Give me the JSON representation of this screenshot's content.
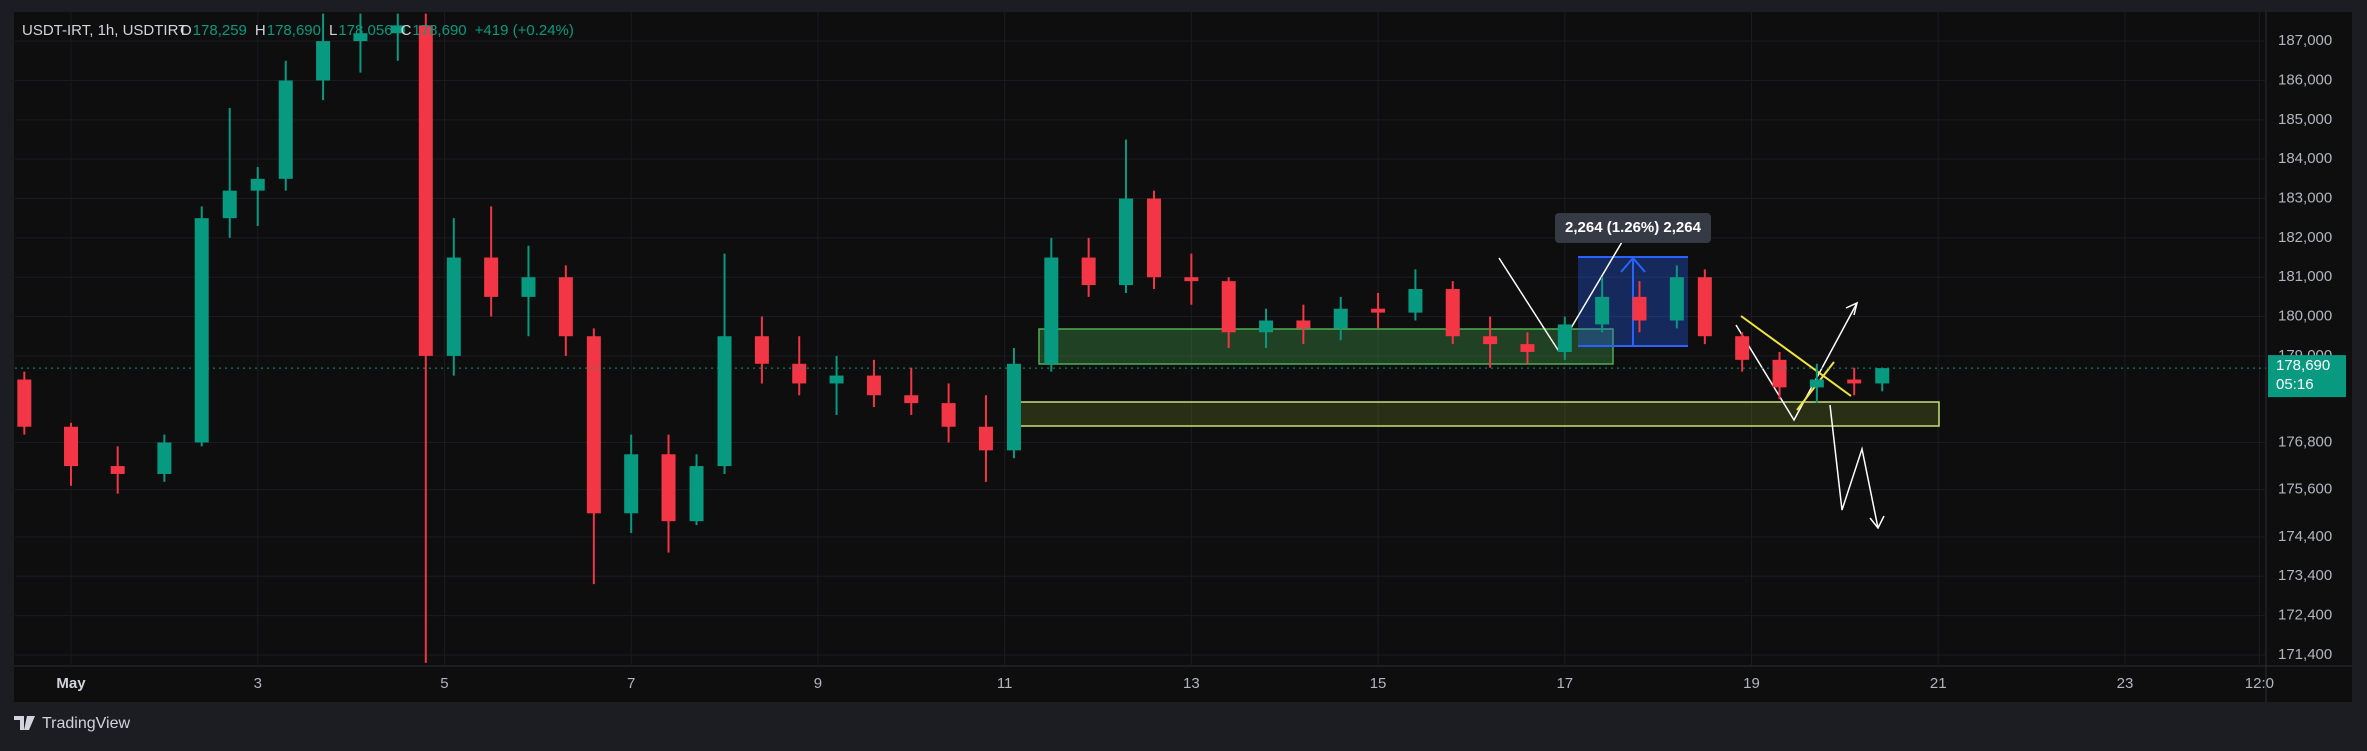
{
  "chart_data": {
    "type": "candlestick",
    "symbol": "USDT-IRT, 1h, USDTIRT",
    "ohlc_text": [
      "O",
      "178,259",
      "H",
      "178,690",
      "L",
      "178,056",
      "C",
      "178,690"
    ],
    "change": "+419 (+0.24%)",
    "measure_label": "2,264 (1.26%) 2,264",
    "countdown": "05:16",
    "last_price": {
      "value": 178690,
      "label": "178,690"
    },
    "brand": "TradingView",
    "up_color": "#089981",
    "down_color": "#f23645",
    "xlim": [
      0.4,
      24.5
    ],
    "xticks": [
      {
        "value": 1,
        "label": "May"
      },
      3,
      5,
      7,
      9,
      11,
      13,
      15,
      17,
      19,
      21,
      23,
      {
        "value": 24.44,
        "label": "12:0"
      }
    ],
    "ylim": [
      171170,
      187740
    ],
    "yticks": [
      {
        "value": 187000,
        "label": "187,000"
      },
      {
        "value": 186000,
        "label": "186,000"
      },
      {
        "value": 185000,
        "label": "185,000"
      },
      {
        "value": 184000,
        "label": "184,000"
      },
      {
        "value": 183000,
        "label": "183,000"
      },
      {
        "value": 182000,
        "label": "182,000"
      },
      {
        "value": 181000,
        "label": "181,000"
      },
      {
        "value": 180000,
        "label": "180,000"
      },
      {
        "value": 179000,
        "label": "179,000"
      },
      {
        "value": 176800,
        "label": "176,800"
      },
      {
        "value": 175600,
        "label": "175,600"
      },
      {
        "value": 174400,
        "label": "174,400"
      },
      {
        "value": 173400,
        "label": "173,400"
      },
      {
        "value": 172400,
        "label": "172,400"
      },
      {
        "value": 171400,
        "label": "171,400"
      }
    ],
    "x": [
      0.5,
      1.0,
      1.5,
      2.0,
      2.4,
      2.7,
      3.0,
      3.3,
      3.7,
      4.1,
      4.5,
      4.8,
      5.1,
      5.5,
      5.9,
      6.3,
      6.6,
      7.0,
      7.4,
      7.7,
      8.0,
      8.4,
      8.8,
      9.2,
      9.6,
      10.0,
      10.4,
      10.8,
      11.1,
      11.5,
      11.9,
      12.3,
      12.6,
      13.0,
      13.4,
      13.8,
      14.2,
      14.6,
      15.0,
      15.4,
      15.8,
      16.2,
      16.6,
      17.0,
      17.4,
      17.8,
      18.2,
      18.5,
      18.9,
      19.3,
      19.7,
      20.1,
      20.4
    ],
    "open": [
      178400,
      177200,
      176200,
      176000,
      176800,
      182500,
      183200,
      183500,
      186000,
      187000,
      187200,
      187400,
      179000,
      181500,
      180500,
      181000,
      179500,
      175000,
      176500,
      174800,
      176200,
      179500,
      178800,
      178300,
      178500,
      178000,
      177800,
      177200,
      176600,
      178800,
      181500,
      180800,
      183000,
      181000,
      180900,
      179600,
      179900,
      179700,
      180200,
      180100,
      180700,
      179500,
      179300,
      179100,
      179800,
      180500,
      179900,
      181000,
      179500,
      178900,
      178200,
      178400,
      178300
    ],
    "high": [
      178600,
      177300,
      176700,
      177000,
      182800,
      185300,
      183800,
      186500,
      187700,
      187700,
      187700,
      187700,
      182500,
      182800,
      181800,
      181300,
      179700,
      177000,
      177000,
      176500,
      181600,
      180000,
      179500,
      179000,
      178900,
      178700,
      178300,
      178000,
      179200,
      182000,
      182000,
      184500,
      183200,
      181600,
      181000,
      180200,
      180300,
      180500,
      180600,
      181200,
      180900,
      180000,
      179600,
      180000,
      181000,
      180900,
      181300,
      181200,
      179600,
      179100,
      178800,
      178700,
      178700
    ],
    "low": [
      177000,
      175700,
      175500,
      175800,
      176700,
      182000,
      182300,
      183200,
      185500,
      186200,
      186500,
      171200,
      178500,
      180000,
      179500,
      179000,
      173200,
      174500,
      174000,
      174700,
      176000,
      178300,
      178000,
      177500,
      177700,
      177500,
      176800,
      175800,
      176400,
      178600,
      180500,
      180600,
      180700,
      180300,
      179200,
      179200,
      179300,
      179400,
      179700,
      179900,
      179300,
      178700,
      178800,
      178900,
      179600,
      179600,
      179700,
      179300,
      178600,
      177900,
      177800,
      178000,
      178100
    ],
    "close": [
      177200,
      176200,
      176000,
      176800,
      182500,
      183200,
      183500,
      186000,
      187000,
      187200,
      187400,
      179000,
      181500,
      180500,
      181000,
      179500,
      175000,
      176500,
      174800,
      176200,
      179500,
      178800,
      178300,
      178500,
      178000,
      177800,
      177200,
      176600,
      178800,
      181500,
      180800,
      183000,
      181000,
      180900,
      179600,
      179900,
      179700,
      180200,
      180100,
      180700,
      179500,
      179300,
      179100,
      179800,
      180500,
      179900,
      181000,
      179500,
      178900,
      178200,
      178400,
      178300,
      178690
    ]
  }
}
